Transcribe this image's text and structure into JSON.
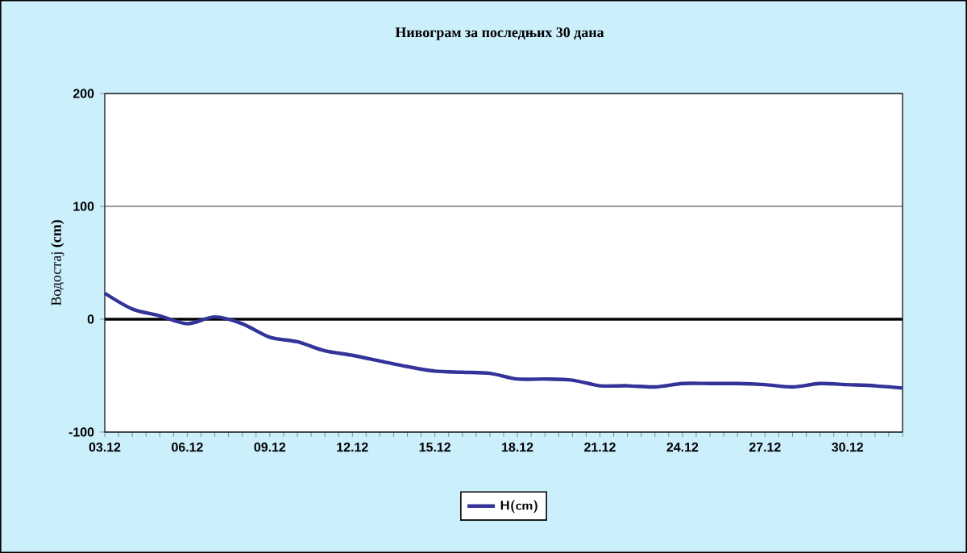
{
  "chart_data": {
    "type": "line",
    "title": "Нивограм за последњих 30 дана",
    "ylabel": "Водостај **(cm)**",
    "categories": [
      "03.12",
      null,
      null,
      "06.12",
      null,
      null,
      "09.12",
      null,
      null,
      "12.12",
      null,
      null,
      "15.12",
      null,
      null,
      "18.12",
      null,
      null,
      "21.12",
      null,
      null,
      "24.12",
      null,
      null,
      "27.12",
      null,
      null,
      "30.12",
      null,
      null
    ],
    "series": [
      {
        "name": "H(cm)",
        "color": "#333399",
        "values": [
          23,
          9,
          3,
          -4,
          2,
          -4,
          -16,
          -20,
          -28,
          -32,
          -37,
          -42,
          -46,
          -47,
          -48,
          -53,
          -53,
          -54,
          -59,
          -59,
          -60,
          -57,
          -57,
          -57,
          -58,
          -60,
          -57,
          -58,
          -59,
          -61
        ]
      }
    ],
    "ylim": [
      -100,
      200
    ],
    "yticks": [
      -100,
      0,
      100,
      200
    ],
    "grid": "y",
    "legend": "bottom",
    "marker": "none",
    "line_style": "solid",
    "ref_lines": [
      {
        "axis": "y",
        "value": 0,
        "color": "#000000"
      }
    ]
  }
}
